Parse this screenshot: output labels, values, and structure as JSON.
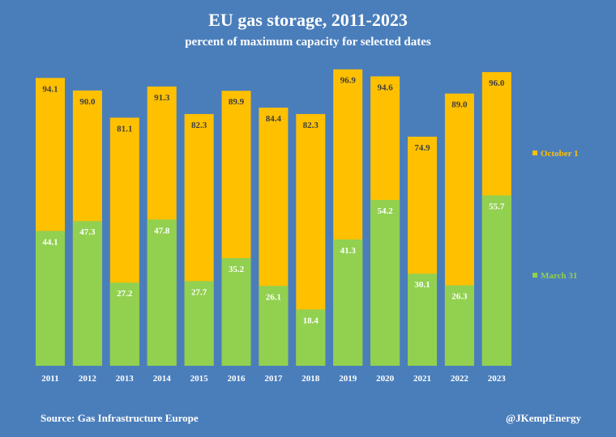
{
  "colors": {
    "background": "#4a7ebb",
    "october": "#ffc000",
    "march": "#92d050",
    "october_label": "#404040",
    "march_label": "#ffffff",
    "text": "#ffffff"
  },
  "chart_data": {
    "type": "bar",
    "stacked": "overlay",
    "title": "EU gas storage, 2011-2023",
    "subtitle": "percent of maximum capacity for selected dates",
    "categories": [
      "2011",
      "2012",
      "2013",
      "2014",
      "2015",
      "2016",
      "2017",
      "2018",
      "2019",
      "2020",
      "2021",
      "2022",
      "2023"
    ],
    "series": [
      {
        "name": "October 1",
        "values": [
          94.1,
          90.0,
          81.1,
          91.3,
          82.3,
          89.9,
          84.4,
          82.3,
          96.9,
          94.6,
          74.9,
          89.0,
          96.0
        ],
        "labels": [
          "94.1",
          "90.0",
          "81.1",
          "91.3",
          "82.3",
          "89.9",
          "84.4",
          "82.3",
          "96.9",
          "94.6",
          "74.9",
          "89.0",
          "96.0"
        ]
      },
      {
        "name": "March 31",
        "values": [
          44.1,
          47.3,
          27.2,
          47.8,
          27.7,
          35.2,
          26.1,
          18.4,
          41.3,
          54.2,
          30.1,
          26.3,
          55.7
        ],
        "labels": [
          "44.1",
          "47.3",
          "27.2",
          "47.8",
          "27.7",
          "35.2",
          "26.1",
          "18.4",
          "41.3",
          "54.2",
          "30.1",
          "26.3",
          "55.7"
        ]
      }
    ],
    "ylim": [
      0,
      100
    ],
    "xlabel": "",
    "ylabel": "",
    "grid": false,
    "legend_position": "right"
  },
  "footer": {
    "source": "Source: Gas Infrastructure Europe",
    "credit": "@JKempEnergy"
  }
}
